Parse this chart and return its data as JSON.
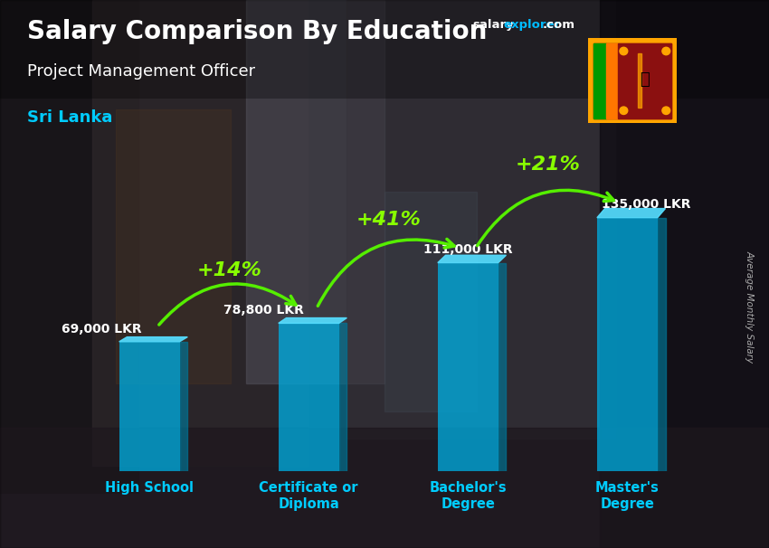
{
  "title_line1": "Salary Comparison By Education",
  "subtitle": "Project Management Officer",
  "country": "Sri Lanka",
  "ylabel": "Average Monthly Salary",
  "categories": [
    "High School",
    "Certificate or\nDiploma",
    "Bachelor's\nDegree",
    "Master's\nDegree"
  ],
  "values": [
    69000,
    78800,
    111000,
    135000
  ],
  "value_labels": [
    "69,000 LKR",
    "78,800 LKR",
    "111,000 LKR",
    "135,000 LKR"
  ],
  "pct_labels": [
    "+14%",
    "+41%",
    "+21%"
  ],
  "bar_color": "#00aadd",
  "bar_alpha": 0.78,
  "bar_side_color": "#007799",
  "bar_top_color": "#55ddff",
  "title_color": "#ffffff",
  "subtitle_color": "#ffffff",
  "country_color": "#00ccff",
  "value_label_color": "#ffffff",
  "pct_color": "#88ff00",
  "arrow_color": "#55ee00",
  "xtick_color": "#00ccff",
  "bg_color": "#555566",
  "figsize": [
    8.5,
    6.06
  ],
  "dpi": 100,
  "bar_width": 0.38,
  "ylim": [
    0,
    175000
  ]
}
